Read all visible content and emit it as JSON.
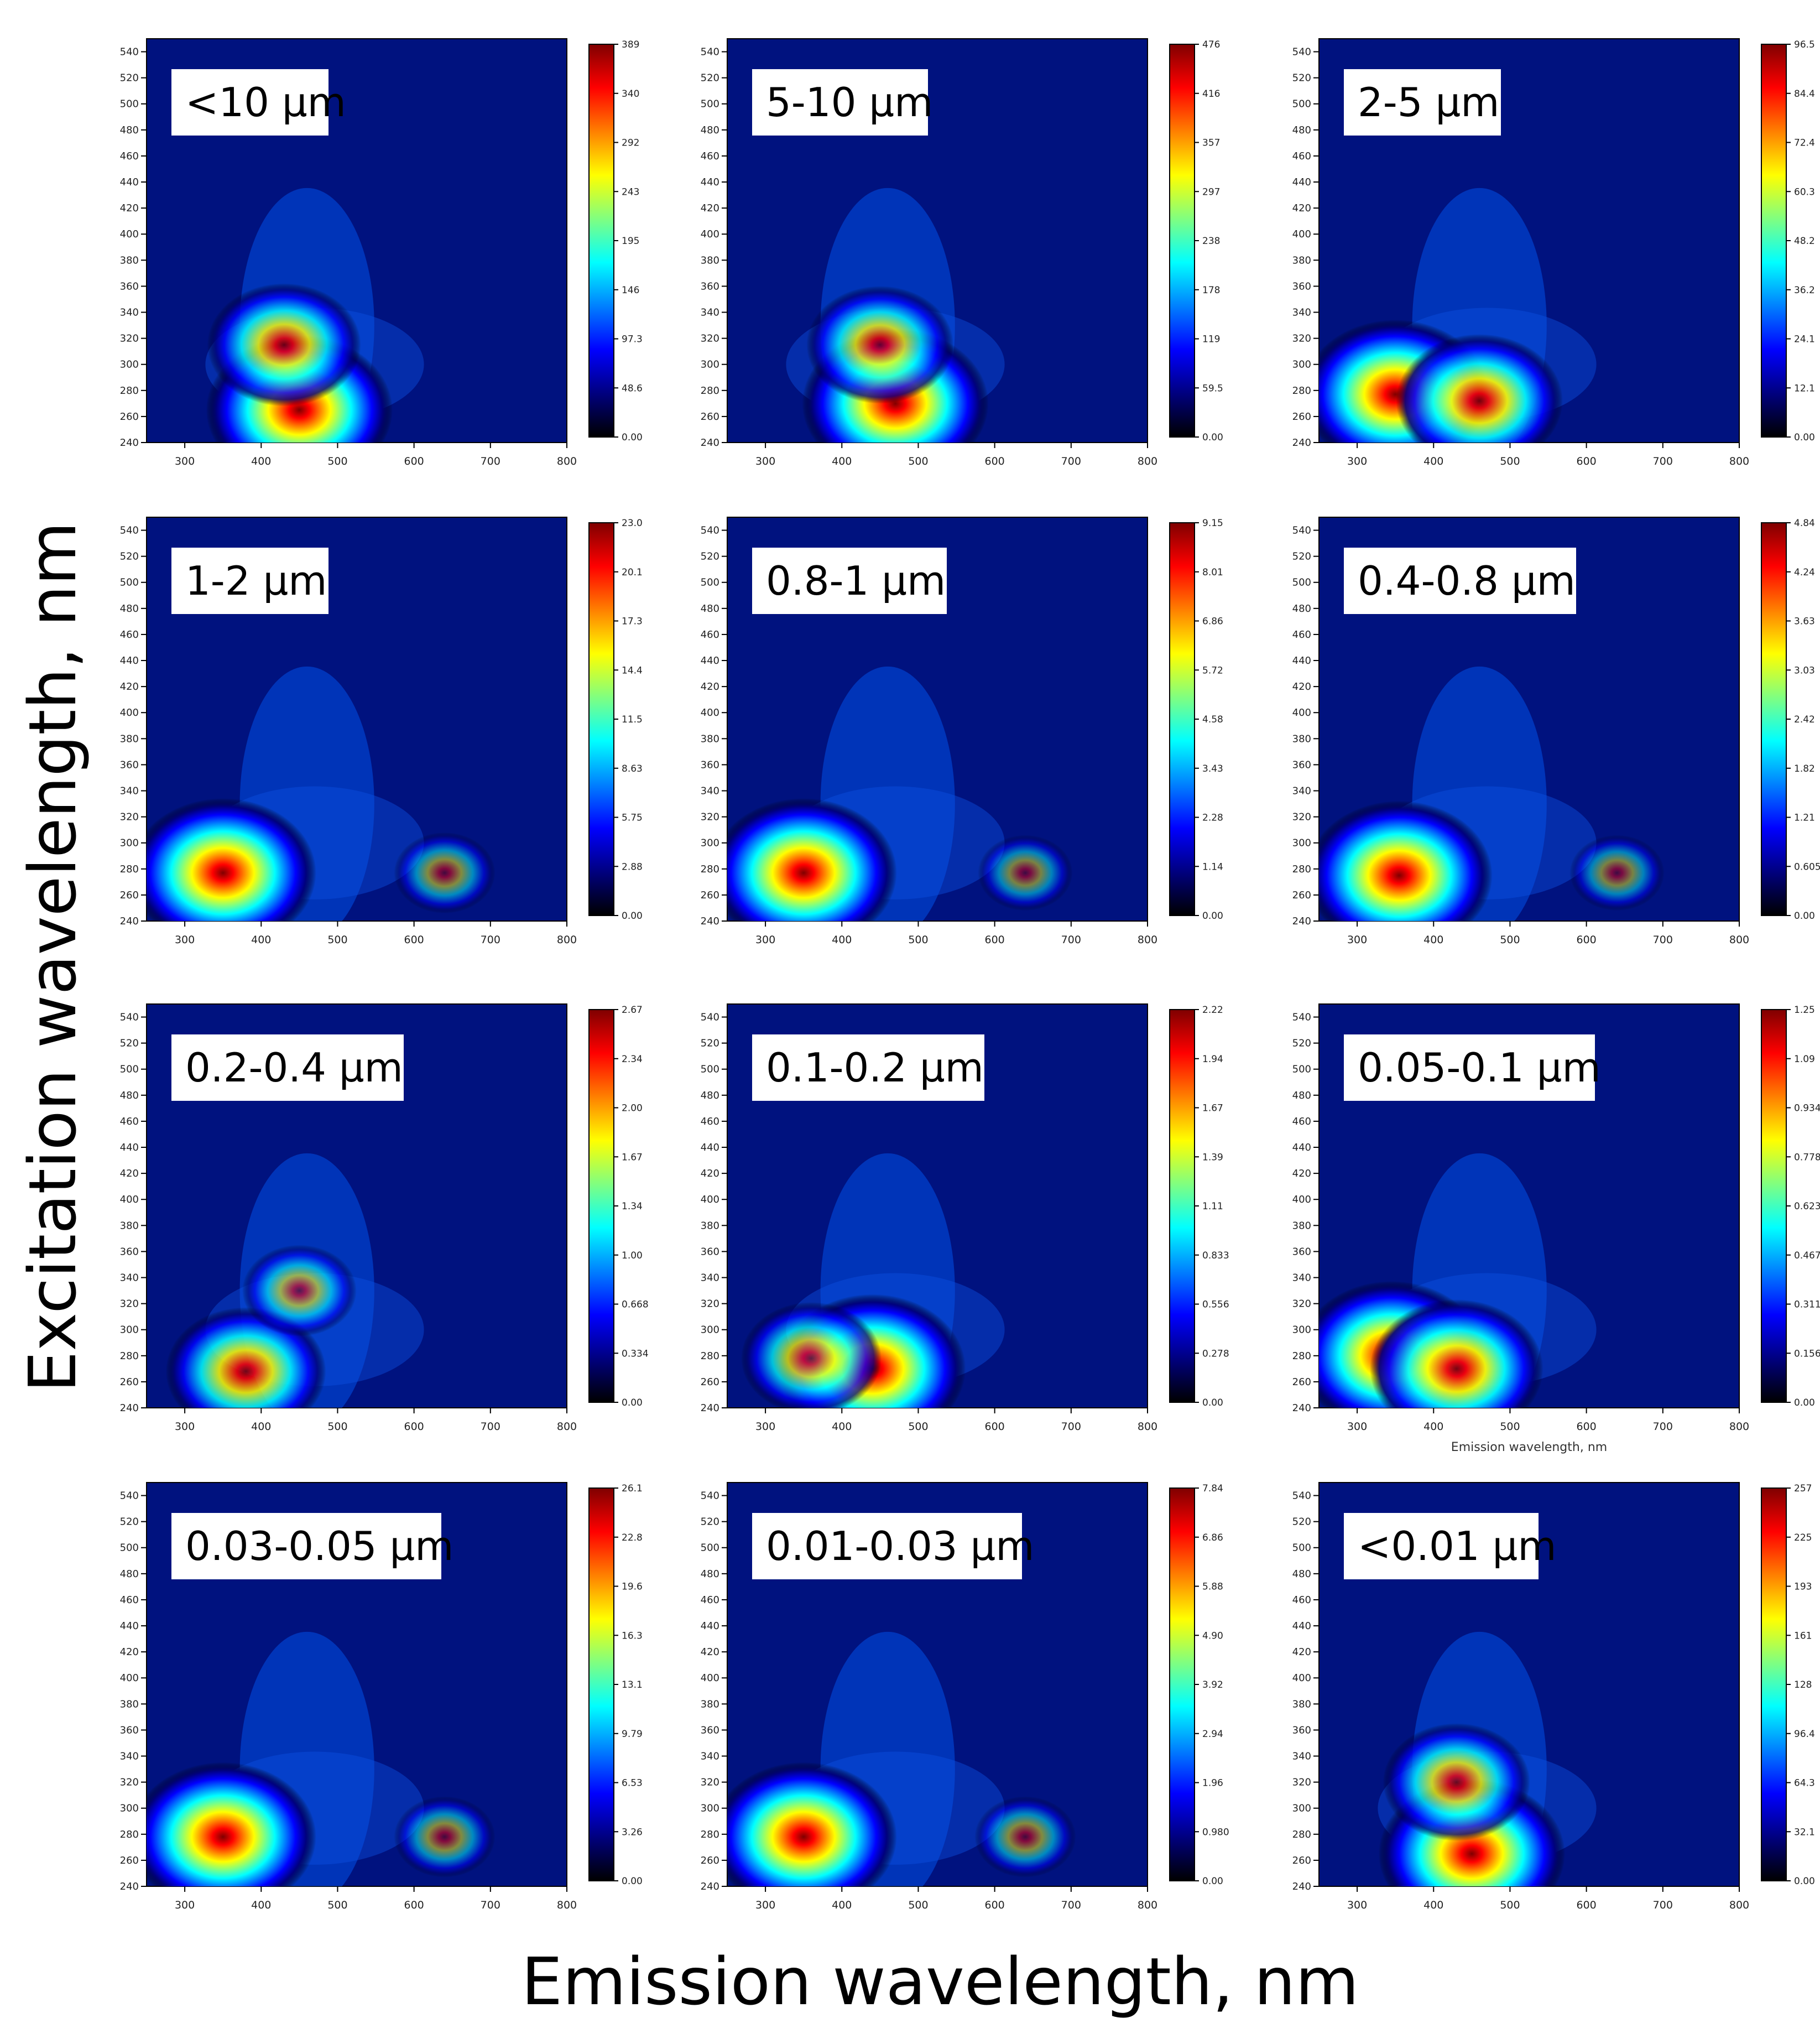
{
  "figure": {
    "xlabel": "Emission wavelength, nm",
    "ylabel": "Excitation wavelength, nm"
  },
  "colors": {
    "background": "#00127f",
    "colormap": [
      "#000000",
      "#00007f",
      "#0000ff",
      "#0080ff",
      "#00ffff",
      "#80ff80",
      "#ffff00",
      "#ff8000",
      "#ff0000",
      "#7f0000"
    ]
  },
  "chart_data": [
    {
      "type": "heatmap",
      "title": "<10 μm",
      "x_ticks": [
        "300",
        "400",
        "500",
        "600",
        "700",
        "800"
      ],
      "xlim": [
        250,
        800
      ],
      "y_ticks": [
        "240",
        "260",
        "280",
        "300",
        "320",
        "340",
        "360",
        "380",
        "400",
        "420",
        "440",
        "460",
        "480",
        "500",
        "520",
        "540"
      ],
      "ylim": [
        240,
        550
      ],
      "colorbar_ticks": [
        "0.00",
        "48.6",
        "97.3",
        "146",
        "195",
        "243",
        "292",
        "340",
        "389"
      ],
      "features": [
        {
          "x": 450,
          "y": 265,
          "intensity": 1.0
        },
        {
          "x": 430,
          "y": 315,
          "intensity": 0.75
        }
      ],
      "xlabel": "",
      "ylabel": ""
    },
    {
      "type": "heatmap",
      "title": "5-10 μm",
      "x_ticks": [
        "300",
        "400",
        "500",
        "600",
        "700",
        "800"
      ],
      "xlim": [
        250,
        800
      ],
      "y_ticks": [
        "240",
        "260",
        "280",
        "300",
        "320",
        "340",
        "360",
        "380",
        "400",
        "420",
        "440",
        "460",
        "480",
        "500",
        "520",
        "540"
      ],
      "ylim": [
        240,
        550
      ],
      "colorbar_ticks": [
        "0.00",
        "59.5",
        "119",
        "178",
        "238",
        "297",
        "357",
        "416",
        "476"
      ],
      "features": [
        {
          "x": 470,
          "y": 270,
          "intensity": 1.0
        },
        {
          "x": 450,
          "y": 315,
          "intensity": 0.7
        }
      ],
      "xlabel": "",
      "ylabel": ""
    },
    {
      "type": "heatmap",
      "title": "2-5 μm",
      "x_ticks": [
        "300",
        "400",
        "500",
        "600",
        "700",
        "800"
      ],
      "xlim": [
        250,
        800
      ],
      "y_ticks": [
        "240",
        "260",
        "280",
        "300",
        "320",
        "340",
        "360",
        "380",
        "400",
        "420",
        "440",
        "460",
        "480",
        "500",
        "520",
        "540"
      ],
      "ylim": [
        240,
        550
      ],
      "colorbar_ticks": [
        "0.00",
        "12.1",
        "24.1",
        "36.2",
        "48.2",
        "60.3",
        "72.4",
        "84.4",
        "96.5"
      ],
      "features": [
        {
          "x": 350,
          "y": 277,
          "intensity": 1.0
        },
        {
          "x": 460,
          "y": 272,
          "intensity": 0.85
        }
      ],
      "xlabel": "",
      "ylabel": ""
    },
    {
      "type": "heatmap",
      "title": "1-2 μm",
      "x_ticks": [
        "300",
        "400",
        "500",
        "600",
        "700",
        "800"
      ],
      "xlim": [
        250,
        800
      ],
      "y_ticks": [
        "240",
        "260",
        "280",
        "300",
        "320",
        "340",
        "360",
        "380",
        "400",
        "420",
        "440",
        "460",
        "480",
        "500",
        "520",
        "540"
      ],
      "ylim": [
        240,
        550
      ],
      "colorbar_ticks": [
        "0.00",
        "2.88",
        "5.75",
        "8.63",
        "11.5",
        "14.4",
        "17.3",
        "20.1",
        "23.0"
      ],
      "features": [
        {
          "x": 350,
          "y": 277,
          "intensity": 1.0
        },
        {
          "x": 640,
          "y": 277,
          "intensity": 0.35
        }
      ],
      "xlabel": "",
      "ylabel": ""
    },
    {
      "type": "heatmap",
      "title": "0.8-1 μm",
      "x_ticks": [
        "300",
        "400",
        "500",
        "600",
        "700",
        "800"
      ],
      "xlim": [
        250,
        800
      ],
      "y_ticks": [
        "240",
        "260",
        "280",
        "300",
        "320",
        "340",
        "360",
        "380",
        "400",
        "420",
        "440",
        "460",
        "480",
        "500",
        "520",
        "540"
      ],
      "ylim": [
        240,
        550
      ],
      "colorbar_ticks": [
        "0.00",
        "1.14",
        "2.28",
        "3.43",
        "4.58",
        "5.72",
        "6.86",
        "8.01",
        "9.15"
      ],
      "features": [
        {
          "x": 350,
          "y": 277,
          "intensity": 1.0
        },
        {
          "x": 640,
          "y": 277,
          "intensity": 0.3
        }
      ],
      "xlabel": "",
      "ylabel": ""
    },
    {
      "type": "heatmap",
      "title": "0.4-0.8 μm",
      "x_ticks": [
        "300",
        "400",
        "500",
        "600",
        "700",
        "800"
      ],
      "xlim": [
        250,
        800
      ],
      "y_ticks": [
        "240",
        "260",
        "280",
        "300",
        "320",
        "340",
        "360",
        "380",
        "400",
        "420",
        "440",
        "460",
        "480",
        "500",
        "520",
        "540"
      ],
      "ylim": [
        240,
        550
      ],
      "colorbar_ticks": [
        "0.00",
        "0.605",
        "1.21",
        "1.82",
        "2.42",
        "3.03",
        "3.63",
        "4.24",
        "4.84"
      ],
      "features": [
        {
          "x": 355,
          "y": 275,
          "intensity": 1.0
        },
        {
          "x": 640,
          "y": 277,
          "intensity": 0.3
        }
      ],
      "xlabel": "",
      "ylabel": ""
    },
    {
      "type": "heatmap",
      "title": "0.2-0.4 μm",
      "x_ticks": [
        "300",
        "400",
        "500",
        "600",
        "700",
        "800"
      ],
      "xlim": [
        250,
        800
      ],
      "y_ticks": [
        "240",
        "260",
        "280",
        "300",
        "320",
        "340",
        "360",
        "380",
        "400",
        "420",
        "440",
        "460",
        "480",
        "500",
        "520",
        "540"
      ],
      "ylim": [
        240,
        550
      ],
      "colorbar_ticks": [
        "0.00",
        "0.334",
        "0.668",
        "1.00",
        "1.34",
        "1.67",
        "2.00",
        "2.34",
        "2.67"
      ],
      "features": [
        {
          "x": 380,
          "y": 268,
          "intensity": 0.8
        },
        {
          "x": 450,
          "y": 330,
          "intensity": 0.45
        }
      ],
      "xlabel": "",
      "ylabel": ""
    },
    {
      "type": "heatmap",
      "title": "0.1-0.2 μm",
      "x_ticks": [
        "300",
        "400",
        "500",
        "600",
        "700",
        "800"
      ],
      "xlim": [
        250,
        800
      ],
      "y_ticks": [
        "240",
        "260",
        "280",
        "300",
        "320",
        "340",
        "360",
        "380",
        "400",
        "420",
        "440",
        "460",
        "480",
        "500",
        "520",
        "540"
      ],
      "ylim": [
        240,
        550
      ],
      "colorbar_ticks": [
        "0.00",
        "0.278",
        "0.556",
        "0.833",
        "1.11",
        "1.39",
        "1.67",
        "1.94",
        "2.22"
      ],
      "features": [
        {
          "x": 440,
          "y": 270,
          "intensity": 1.0
        },
        {
          "x": 360,
          "y": 278,
          "intensity": 0.65
        }
      ],
      "xlabel": "",
      "ylabel": ""
    },
    {
      "type": "heatmap",
      "title": "0.05-0.1 μm",
      "x_ticks": [
        "300",
        "400",
        "500",
        "600",
        "700",
        "800"
      ],
      "xlim": [
        250,
        800
      ],
      "y_ticks": [
        "240",
        "260",
        "280",
        "300",
        "320",
        "340",
        "360",
        "380",
        "400",
        "420",
        "440",
        "460",
        "480",
        "500",
        "520",
        "540"
      ],
      "ylim": [
        240,
        550
      ],
      "colorbar_ticks": [
        "0.00",
        "0.156",
        "0.311",
        "0.467",
        "0.623",
        "0.778",
        "0.934",
        "1.09",
        "1.25"
      ],
      "features": [
        {
          "x": 345,
          "y": 280,
          "intensity": 1.0
        },
        {
          "x": 430,
          "y": 270,
          "intensity": 0.9
        }
      ],
      "inner_xlabel": "Emission wavelength, nm",
      "xlabel": "",
      "ylabel": ""
    },
    {
      "type": "heatmap",
      "title": "0.03-0.05 μm",
      "x_ticks": [
        "300",
        "400",
        "500",
        "600",
        "700",
        "800"
      ],
      "xlim": [
        250,
        800
      ],
      "y_ticks": [
        "240",
        "260",
        "280",
        "300",
        "320",
        "340",
        "360",
        "380",
        "400",
        "420",
        "440",
        "460",
        "480",
        "500",
        "520",
        "540"
      ],
      "ylim": [
        240,
        550
      ],
      "colorbar_ticks": [
        "0.00",
        "3.26",
        "6.53",
        "9.79",
        "13.1",
        "16.3",
        "19.6",
        "22.8",
        "26.1"
      ],
      "features": [
        {
          "x": 350,
          "y": 278,
          "intensity": 1.0
        },
        {
          "x": 640,
          "y": 278,
          "intensity": 0.35
        }
      ],
      "xlabel": "",
      "ylabel": ""
    },
    {
      "type": "heatmap",
      "title": "0.01-0.03 μm",
      "x_ticks": [
        "300",
        "400",
        "500",
        "600",
        "700",
        "800"
      ],
      "xlim": [
        250,
        800
      ],
      "y_ticks": [
        "240",
        "260",
        "280",
        "300",
        "320",
        "340",
        "360",
        "380",
        "400",
        "420",
        "440",
        "460",
        "480",
        "500",
        "520",
        "540"
      ],
      "ylim": [
        240,
        550
      ],
      "colorbar_ticks": [
        "0.00",
        "0.980",
        "1.96",
        "2.94",
        "3.92",
        "4.90",
        "5.88",
        "6.86",
        "7.84"
      ],
      "features": [
        {
          "x": 350,
          "y": 278,
          "intensity": 1.0
        },
        {
          "x": 640,
          "y": 278,
          "intensity": 0.35
        }
      ],
      "xlabel": "",
      "ylabel": ""
    },
    {
      "type": "heatmap",
      "title": "<0.01 μm",
      "x_ticks": [
        "300",
        "400",
        "500",
        "600",
        "700",
        "800"
      ],
      "xlim": [
        250,
        800
      ],
      "y_ticks": [
        "240",
        "260",
        "280",
        "300",
        "320",
        "340",
        "360",
        "380",
        "400",
        "420",
        "440",
        "460",
        "480",
        "500",
        "520",
        "540"
      ],
      "ylim": [
        240,
        550
      ],
      "colorbar_ticks": [
        "0.00",
        "32.1",
        "64.3",
        "96.4",
        "128",
        "161",
        "193",
        "225",
        "257"
      ],
      "features": [
        {
          "x": 450,
          "y": 265,
          "intensity": 1.0
        },
        {
          "x": 430,
          "y": 320,
          "intensity": 0.7
        }
      ],
      "xlabel": "",
      "ylabel": ""
    }
  ]
}
